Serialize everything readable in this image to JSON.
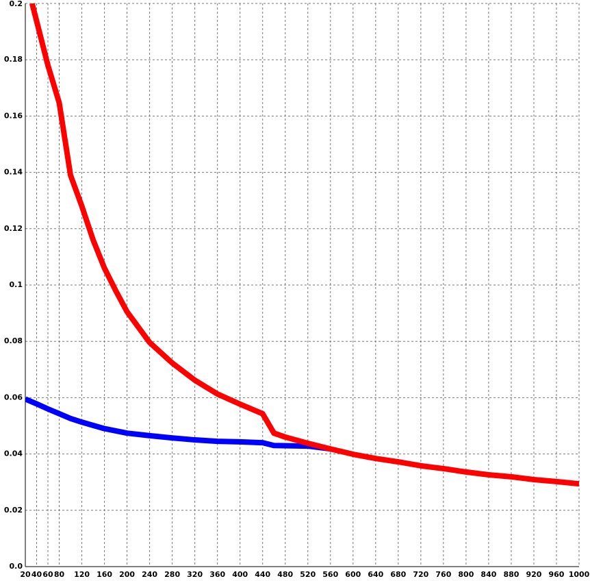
{
  "chart_data": {
    "type": "line",
    "xlim": [
      20,
      1000
    ],
    "xticks": [
      20,
      40,
      60,
      80,
      120,
      160,
      200,
      240,
      280,
      320,
      360,
      400,
      440,
      480,
      520,
      560,
      600,
      640,
      680,
      720,
      760,
      800,
      840,
      880,
      920,
      960,
      1000
    ],
    "ylim": [
      0,
      0.2
    ],
    "yticks": [
      {
        "value": 0,
        "label": "0.0"
      },
      0.02,
      0.04,
      0.06,
      0.08,
      0.1,
      0.12,
      0.14,
      0.16,
      0.18,
      0.2
    ],
    "grid": true,
    "series": [
      {
        "color": "#0000ff",
        "x": [
          20,
          40,
          60,
          80,
          100,
          120,
          160,
          200,
          240,
          280,
          320,
          360,
          400,
          440,
          460,
          520,
          560
        ],
        "values": [
          0.0595,
          0.0578,
          0.056,
          0.0543,
          0.0526,
          0.0513,
          0.049,
          0.0474,
          0.0465,
          0.0457,
          0.045,
          0.0445,
          0.0443,
          0.044,
          0.043,
          0.0428,
          0.0418
        ]
      },
      {
        "color": "#ff0000",
        "x": [
          32,
          60,
          80,
          100,
          120,
          140,
          160,
          180,
          200,
          240,
          280,
          320,
          360,
          400,
          440,
          460,
          480,
          520,
          560,
          600,
          640,
          680,
          720,
          760,
          800,
          840,
          880,
          920,
          960,
          1000
        ],
        "values": [
          0.2,
          0.178,
          0.1647,
          0.139,
          0.128,
          0.116,
          0.106,
          0.098,
          0.0905,
          0.0796,
          0.0723,
          0.0662,
          0.0613,
          0.0577,
          0.0543,
          0.0474,
          0.046,
          0.0438,
          0.0418,
          0.0399,
          0.0384,
          0.0372,
          0.0358,
          0.0348,
          0.0336,
          0.0326,
          0.0319,
          0.0309,
          0.0302,
          0.0294
        ]
      }
    ]
  }
}
